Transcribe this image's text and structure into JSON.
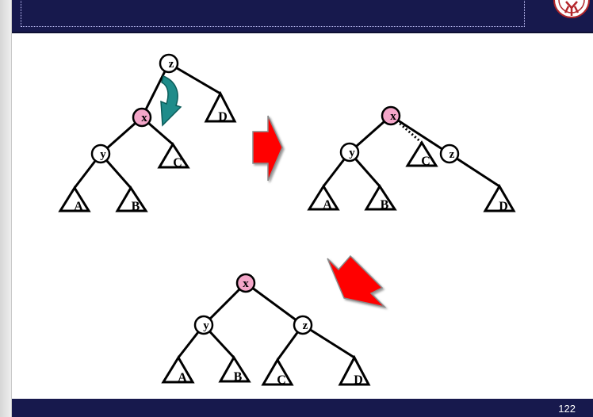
{
  "footer": {
    "page_number": "122"
  },
  "diagram": {
    "before": {
      "nodes": {
        "z": "z",
        "x": "x",
        "y": "y"
      },
      "subtrees": {
        "A": "A",
        "B": "B",
        "C": "C",
        "D": "D"
      }
    },
    "middle": {
      "nodes": {
        "x": "x",
        "y": "y",
        "z": "z"
      },
      "subtrees": {
        "A": "A",
        "B": "B",
        "C": "C",
        "D": "D"
      }
    },
    "after": {
      "nodes": {
        "x": "x",
        "y": "y",
        "z": "z"
      },
      "subtrees": {
        "A": "A",
        "B": "B",
        "C": "C",
        "D": "D"
      }
    },
    "colors": {
      "red_node": "#f4a6c9",
      "black_node": "#ffffff",
      "rotation_arrow": "#1f8c8a",
      "step_arrow": "#ff0000",
      "header": "#17194d"
    }
  }
}
